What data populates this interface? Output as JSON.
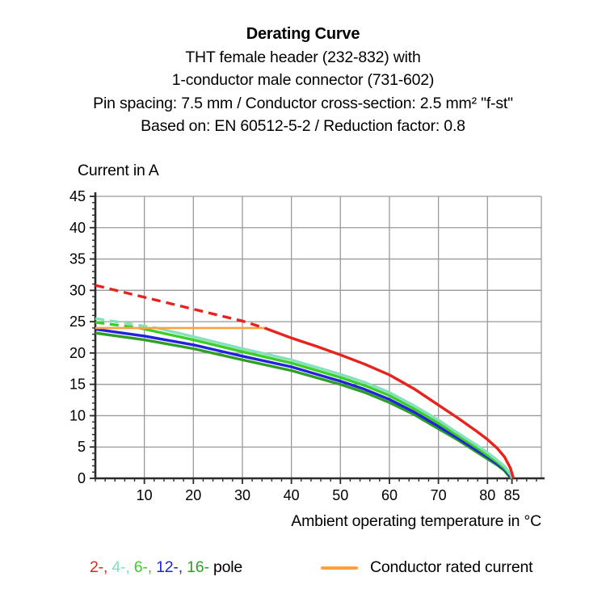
{
  "header": {
    "title": "Derating Curve",
    "subtitle_lines": [
      "THT female header (232-832) with",
      "1-conductor male connector  (731-602)",
      "Pin spacing: 7.5 mm / Conductor cross-section: 2.5 mm² \"f-st\"",
      "Based on: EN 60512-5-2 / Reduction factor: 0.8"
    ]
  },
  "chart_data": {
    "type": "line",
    "title": "Derating Curve",
    "xlabel": "Ambient operating temperature in °C",
    "ylabel": "Current in A",
    "xlim": [
      0,
      91
    ],
    "ylim": [
      0,
      45
    ],
    "x_gridlines": [
      10,
      20,
      30,
      40,
      50,
      60,
      70,
      80
    ],
    "x_major_ticks": [
      10,
      20,
      30,
      40,
      50,
      60,
      70,
      80,
      85
    ],
    "y_major_ticks": [
      0,
      5,
      10,
      15,
      20,
      25,
      30,
      35,
      40,
      45
    ],
    "x_minor_step": 2,
    "y_minor_step": 1,
    "grid": true,
    "grid_color": "#9a9a9a",
    "axis_color": "#2b2b2b",
    "legend_position": "bottom",
    "series": [
      {
        "name": "16-pole",
        "color": "#2f9e24",
        "width": 3.4,
        "segments": [
          {
            "dash": false,
            "points": [
              [
                0,
                23.2
              ],
              [
                10,
                22.1
              ],
              [
                20,
                20.7
              ],
              [
                30,
                18.9
              ],
              [
                40,
                17.2
              ],
              [
                50,
                15.0
              ],
              [
                55,
                13.7
              ],
              [
                60,
                12.1
              ],
              [
                65,
                10.2
              ],
              [
                70,
                7.9
              ],
              [
                74,
                6.1
              ],
              [
                78,
                4.1
              ],
              [
                80,
                3.1
              ],
              [
                82,
                2.1
              ],
              [
                83.5,
                1.2
              ],
              [
                84.5,
                0.3
              ],
              [
                84.8,
                0
              ]
            ]
          }
        ]
      },
      {
        "name": "12-pole",
        "color": "#2121de",
        "width": 3.4,
        "segments": [
          {
            "dash": false,
            "points": [
              [
                0,
                23.8
              ],
              [
                10,
                22.7
              ],
              [
                20,
                21.3
              ],
              [
                30,
                19.5
              ],
              [
                40,
                17.8
              ],
              [
                50,
                15.5
              ],
              [
                55,
                14.2
              ],
              [
                60,
                12.6
              ],
              [
                65,
                10.6
              ],
              [
                70,
                8.3
              ],
              [
                74,
                6.4
              ],
              [
                78,
                4.4
              ],
              [
                80,
                3.4
              ],
              [
                82,
                2.3
              ],
              [
                83.5,
                1.4
              ],
              [
                84.6,
                0.3
              ],
              [
                84.9,
                0
              ]
            ]
          }
        ]
      },
      {
        "name": "6-pole",
        "color": "#3bce27",
        "width": 3.4,
        "segments": [
          {
            "dash": true,
            "points": [
              [
                0,
                24.9
              ],
              [
                4,
                24.5
              ],
              [
                9,
                24.0
              ]
            ]
          },
          {
            "dash": false,
            "points": [
              [
                9,
                24.0
              ],
              [
                20,
                22.1
              ],
              [
                30,
                20.2
              ],
              [
                40,
                18.4
              ],
              [
                50,
                16.1
              ],
              [
                55,
                14.8
              ],
              [
                60,
                13.2
              ],
              [
                65,
                11.1
              ],
              [
                70,
                8.8
              ],
              [
                74,
                6.8
              ],
              [
                78,
                4.8
              ],
              [
                80,
                3.7
              ],
              [
                82,
                2.6
              ],
              [
                83.5,
                1.6
              ],
              [
                84.7,
                0.5
              ],
              [
                85,
                0
              ]
            ]
          }
        ]
      },
      {
        "name": "4-pole",
        "color": "#85e0bb",
        "width": 3.4,
        "segments": [
          {
            "dash": true,
            "points": [
              [
                0,
                25.5
              ],
              [
                6,
                24.8
              ],
              [
                12.5,
                24.0
              ]
            ]
          },
          {
            "dash": false,
            "points": [
              [
                12.5,
                24.0
              ],
              [
                20,
                22.6
              ],
              [
                30,
                20.7
              ],
              [
                40,
                18.9
              ],
              [
                50,
                16.6
              ],
              [
                55,
                15.3
              ],
              [
                60,
                13.7
              ],
              [
                65,
                11.6
              ],
              [
                70,
                9.3
              ],
              [
                74,
                7.2
              ],
              [
                78,
                5.2
              ],
              [
                80,
                4.1
              ],
              [
                82,
                2.9
              ],
              [
                83.5,
                1.9
              ],
              [
                84.8,
                0.6
              ],
              [
                85.1,
                0
              ]
            ]
          }
        ]
      },
      {
        "name": "Conductor rated current",
        "color": "#ffa041",
        "width": 2.6,
        "segments": [
          {
            "dash": false,
            "points": [
              [
                0,
                24
              ],
              [
                34.5,
                24
              ]
            ]
          }
        ]
      },
      {
        "name": "2-pole",
        "color": "#e8231d",
        "width": 3.4,
        "segments": [
          {
            "dash": true,
            "points": [
              [
                0,
                30.8
              ],
              [
                10,
                28.9
              ],
              [
                20,
                27.0
              ],
              [
                30,
                25.1
              ],
              [
                34.5,
                24.0
              ]
            ]
          },
          {
            "dash": false,
            "points": [
              [
                34.5,
                24.0
              ],
              [
                40,
                22.4
              ],
              [
                45,
                21.1
              ],
              [
                50,
                19.7
              ],
              [
                55,
                18.2
              ],
              [
                60,
                16.5
              ],
              [
                65,
                14.3
              ],
              [
                70,
                11.7
              ],
              [
                74,
                9.6
              ],
              [
                78,
                7.4
              ],
              [
                80,
                6.2
              ],
              [
                82,
                4.8
              ],
              [
                83.5,
                3.4
              ],
              [
                84.7,
                1.6
              ],
              [
                85.3,
                0
              ]
            ]
          }
        ]
      }
    ]
  },
  "legend": {
    "pole_items": [
      {
        "label": "2-,",
        "color": "#e8231d"
      },
      {
        "label": "4-,",
        "color": "#85e0bb"
      },
      {
        "label": "6-,",
        "color": "#3bce27"
      },
      {
        "label": "12-,",
        "color": "#2121de"
      },
      {
        "label": "16-",
        "color": "#2f9e24"
      }
    ],
    "pole_suffix": "pole",
    "rated_current_label": "Conductor rated current",
    "rated_current_color": "#ffa041"
  }
}
